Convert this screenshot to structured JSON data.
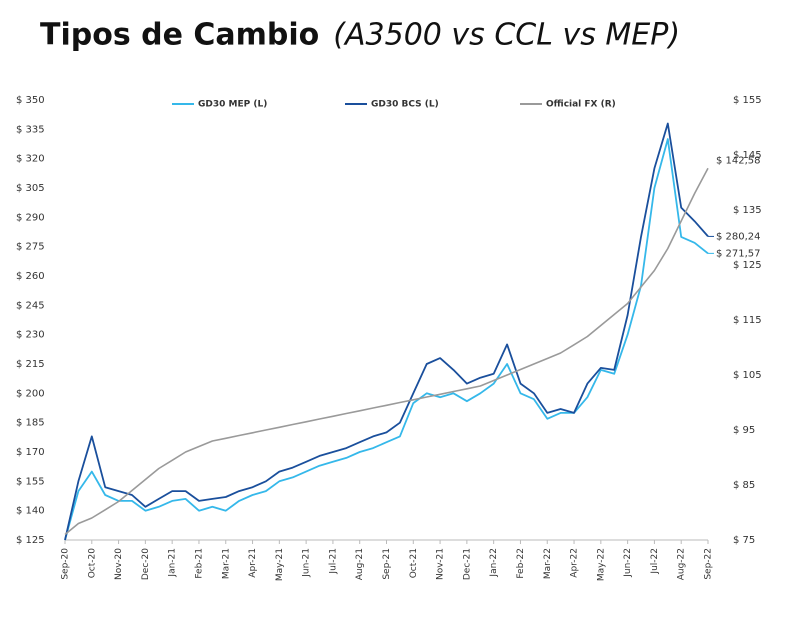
{
  "chart_data": {
    "type": "line",
    "title": "Tipos de Cambio",
    "subtitle": "(A3500 vs CCL vs MEP)",
    "categories": [
      "Sep-20",
      null,
      "Oct-20",
      null,
      "Nov-20",
      null,
      "Dec-20",
      null,
      "Jan-21",
      null,
      "Feb-21",
      null,
      "Mar-21",
      null,
      "Apr-21",
      null,
      "May-21",
      null,
      "Jun-21",
      null,
      "Jul-21",
      null,
      "Aug-21",
      null,
      "Sep-21",
      null,
      "Oct-21",
      null,
      "Nov-21",
      null,
      "Dec-21",
      null,
      "Jan-22",
      null,
      "Feb-22",
      null,
      "Mar-22",
      null,
      "Apr-22",
      null,
      "May-22",
      null,
      "Jun-22",
      null,
      "Jul-22",
      null,
      "Aug-22",
      null,
      "Sep-22"
    ],
    "series": [
      {
        "name": "GD30 MEP (L)",
        "color": "#35b8ea",
        "end_label": "$ 271,57",
        "values": [
          125,
          150,
          160,
          148,
          145,
          145,
          140,
          142,
          145,
          146,
          140,
          142,
          140,
          145,
          148,
          150,
          155,
          157,
          160,
          163,
          165,
          167,
          170,
          172,
          175,
          178,
          195,
          200,
          198,
          200,
          196,
          200,
          205,
          215,
          200,
          197,
          187,
          190,
          190,
          198,
          212,
          210,
          230,
          255,
          305,
          330,
          280,
          277,
          271.57
        ]
      },
      {
        "name": "GD30 BCS (L)",
        "color": "#1a4f9c",
        "end_label": "$ 280,24",
        "values": [
          125,
          155,
          178,
          152,
          150,
          148,
          142,
          146,
          150,
          150,
          145,
          146,
          147,
          150,
          152,
          155,
          160,
          162,
          165,
          168,
          170,
          172,
          175,
          178,
          180,
          185,
          200,
          215,
          218,
          212,
          205,
          208,
          210,
          225,
          205,
          200,
          190,
          192,
          190,
          205,
          213,
          212,
          240,
          280,
          315,
          338,
          295,
          288,
          280.24
        ]
      },
      {
        "name": "Official FX (R)",
        "color": "#9a9a9a",
        "axis": "y2",
        "end_label": "$ 142,58",
        "values": [
          76,
          78,
          79,
          80.5,
          82,
          84,
          86,
          88,
          89.5,
          91,
          92,
          93,
          93.5,
          94,
          94.5,
          95,
          95.5,
          96,
          96.5,
          97,
          97.5,
          98,
          98.5,
          99,
          99.5,
          100,
          100.5,
          101,
          101.5,
          102,
          102.5,
          103,
          104,
          105,
          106,
          107,
          108,
          109,
          110.5,
          112,
          114,
          116,
          118,
          121,
          124,
          128,
          133,
          138,
          142.58
        ]
      }
    ],
    "ylim": [
      125,
      350
    ],
    "yticks": [
      {
        "value": 125,
        "label": "$ 125"
      },
      {
        "value": 140,
        "label": "$ 140"
      },
      {
        "value": 155,
        "label": "$ 155"
      },
      {
        "value": 170,
        "label": "$ 170"
      },
      {
        "value": 185,
        "label": "$ 185"
      },
      {
        "value": 200,
        "label": "$ 200"
      },
      {
        "value": 215,
        "label": "$ 215"
      },
      {
        "value": 230,
        "label": "$ 230"
      },
      {
        "value": 245,
        "label": "$ 245"
      },
      {
        "value": 260,
        "label": "$ 260"
      },
      {
        "value": 275,
        "label": "$ 275"
      },
      {
        "value": 290,
        "label": "$ 290"
      },
      {
        "value": 305,
        "label": "$ 305"
      },
      {
        "value": 320,
        "label": "$ 320"
      },
      {
        "value": 335,
        "label": "$ 335"
      },
      {
        "value": 350,
        "label": "$ 350"
      }
    ],
    "y2lim": [
      75,
      155
    ],
    "y2ticks": [
      {
        "value": 75,
        "label": "$ 75"
      },
      {
        "value": 85,
        "label": "$ 85"
      },
      {
        "value": 95,
        "label": "$ 95"
      },
      {
        "value": 105,
        "label": "$ 105"
      },
      {
        "value": 115,
        "label": "$ 115"
      },
      {
        "value": 125,
        "label": "$ 125"
      },
      {
        "value": 135,
        "label": "$ 135"
      },
      {
        "value": 145,
        "label": "$ 145"
      },
      {
        "value": 155,
        "label": "$ 155"
      }
    ],
    "grid": false,
    "legend": "top"
  }
}
